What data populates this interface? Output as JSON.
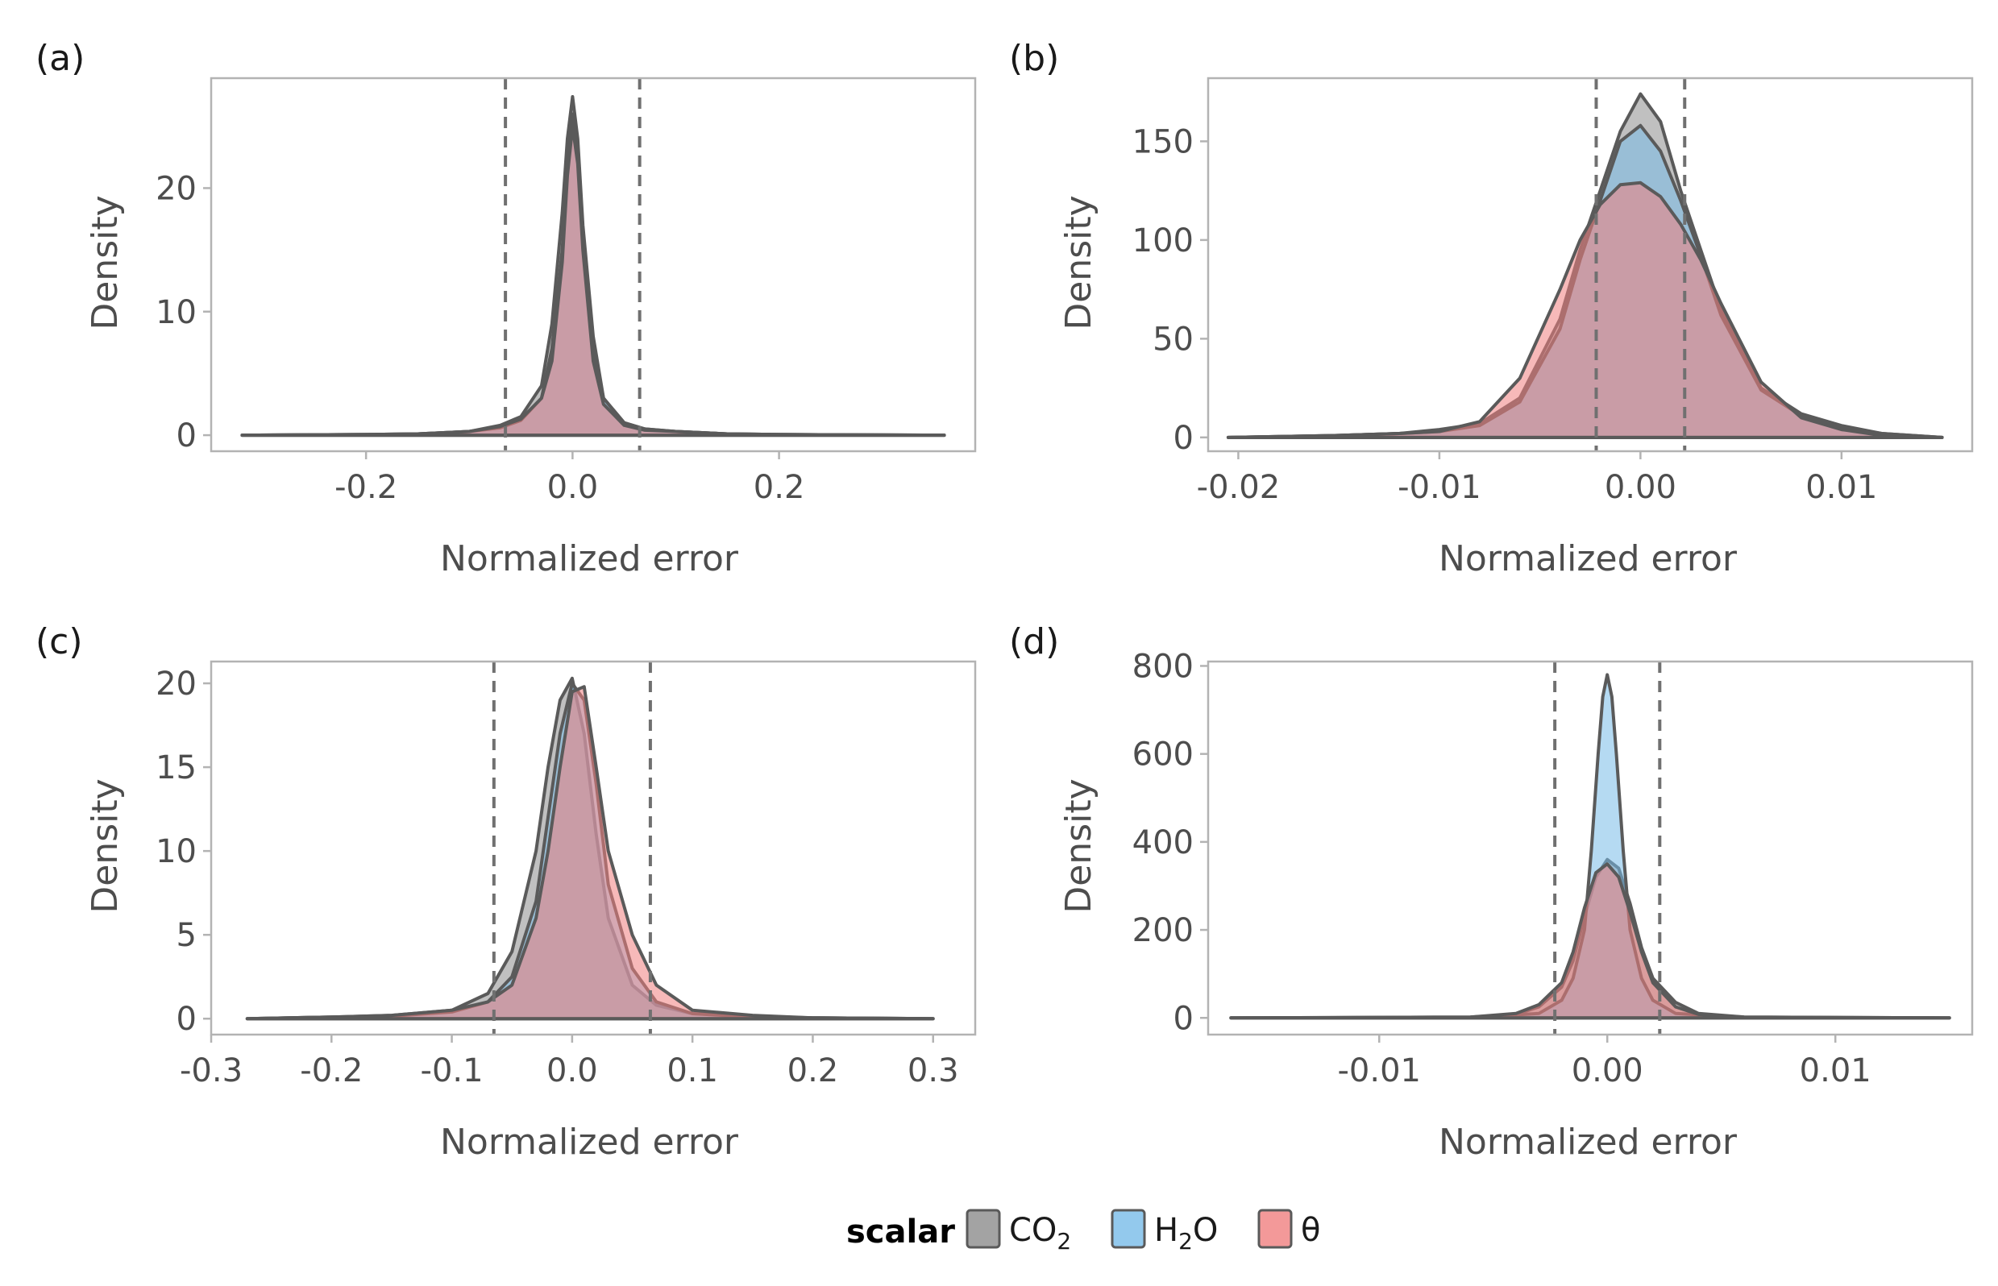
{
  "colors": {
    "CO2": "#8c8c8c",
    "H2O": "#78bbe8",
    "theta": "#f07f7f",
    "outline": "#5a5a5a",
    "panel_border": "#b3b3b3",
    "vline": "#707070"
  },
  "legend": {
    "title": "scalar",
    "items": [
      {
        "key": "CO2",
        "base": "CO",
        "sub": "2"
      },
      {
        "key": "H2O",
        "base": "H",
        "sub": "2",
        "tail": "O"
      },
      {
        "key": "theta",
        "base": "θ"
      }
    ]
  },
  "chart_data": [
    {
      "tag": "(a)",
      "type": "area",
      "xlabel": "Normalized error",
      "ylabel": "Density",
      "xlim": [
        -0.35,
        0.39
      ],
      "ylim": [
        -1.3,
        28.9
      ],
      "xticks": [
        -0.2,
        0.0,
        0.2
      ],
      "xtick_labels": [
        "-0.2",
        "0.0",
        "0.2"
      ],
      "yticks": [
        0,
        10,
        20
      ],
      "ytick_labels": [
        "0",
        "10",
        "20"
      ],
      "vlines": [
        -0.065,
        0.065
      ],
      "series": [
        {
          "key": "CO2",
          "x": [
            -0.32,
            -0.2,
            -0.15,
            -0.1,
            -0.07,
            -0.05,
            -0.03,
            -0.02,
            -0.01,
            -0.005,
            0,
            0.005,
            0.01,
            0.02,
            0.03,
            0.05,
            0.07,
            0.1,
            0.15,
            0.2,
            0.36
          ],
          "y": [
            0,
            0.05,
            0.1,
            0.3,
            0.8,
            1.5,
            4,
            9,
            18,
            24,
            27.4,
            24,
            17,
            8,
            3,
            1,
            0.5,
            0.3,
            0.1,
            0.05,
            0
          ]
        },
        {
          "key": "H2O",
          "x": [
            -0.32,
            -0.2,
            -0.15,
            -0.1,
            -0.07,
            -0.05,
            -0.03,
            -0.02,
            -0.01,
            -0.005,
            0,
            0.005,
            0.01,
            0.02,
            0.03,
            0.05,
            0.07,
            0.1,
            0.15,
            0.2,
            0.36
          ],
          "y": [
            0,
            0.05,
            0.1,
            0.3,
            0.6,
            1.2,
            3,
            7,
            15,
            22,
            26,
            23,
            16,
            7,
            3,
            1,
            0.5,
            0.3,
            0.1,
            0.05,
            0
          ]
        },
        {
          "key": "theta",
          "x": [
            -0.32,
            -0.2,
            -0.15,
            -0.1,
            -0.07,
            -0.05,
            -0.03,
            -0.02,
            -0.01,
            -0.005,
            0,
            0.005,
            0.01,
            0.02,
            0.03,
            0.05,
            0.07,
            0.1,
            0.15,
            0.2,
            0.36
          ],
          "y": [
            0,
            0.05,
            0.1,
            0.3,
            0.7,
            1.3,
            3,
            6,
            14,
            21,
            25,
            22,
            15,
            6,
            2.5,
            0.8,
            0.4,
            0.3,
            0.1,
            0.05,
            0
          ]
        }
      ]
    },
    {
      "tag": "(b)",
      "type": "area",
      "xlabel": "Normalized error",
      "ylabel": "Density",
      "xlim": [
        -0.0215,
        0.0165
      ],
      "ylim": [
        -7,
        182
      ],
      "xticks": [
        -0.02,
        -0.01,
        0.0,
        0.01
      ],
      "xtick_labels": [
        "-0.02",
        "-0.01",
        "0.00",
        "0.01"
      ],
      "yticks": [
        0,
        50,
        100,
        150
      ],
      "ytick_labels": [
        "0",
        "50",
        "100",
        "150"
      ],
      "vlines": [
        -0.0022,
        0.0022
      ],
      "series": [
        {
          "key": "CO2",
          "x": [
            -0.0205,
            -0.015,
            -0.012,
            -0.01,
            -0.008,
            -0.006,
            -0.004,
            -0.003,
            -0.002,
            -0.001,
            0,
            0.001,
            0.002,
            0.003,
            0.004,
            0.006,
            0.008,
            0.01,
            0.012,
            0.015
          ],
          "y": [
            0,
            1,
            2,
            4,
            7,
            20,
            60,
            95,
            125,
            155,
            174,
            160,
            125,
            95,
            65,
            25,
            12,
            6,
            2,
            0
          ]
        },
        {
          "key": "H2O",
          "x": [
            -0.0205,
            -0.015,
            -0.012,
            -0.01,
            -0.008,
            -0.006,
            -0.004,
            -0.003,
            -0.002,
            -0.001,
            0,
            0.001,
            0.002,
            0.003,
            0.004,
            0.006,
            0.008,
            0.01,
            0.012,
            0.015
          ],
          "y": [
            0,
            1,
            2,
            3,
            6,
            18,
            55,
            90,
            120,
            150,
            158,
            145,
            120,
            92,
            62,
            24,
            11,
            5,
            2,
            0
          ]
        },
        {
          "key": "theta",
          "x": [
            -0.0205,
            -0.015,
            -0.012,
            -0.01,
            -0.008,
            -0.006,
            -0.004,
            -0.003,
            -0.002,
            -0.001,
            0,
            0.001,
            0.002,
            0.003,
            0.004,
            0.006,
            0.008,
            0.01,
            0.012,
            0.015
          ],
          "y": [
            0,
            1,
            2,
            3,
            8,
            30,
            75,
            100,
            118,
            128,
            129,
            122,
            108,
            90,
            68,
            28,
            10,
            4,
            1,
            0
          ]
        }
      ]
    },
    {
      "tag": "(c)",
      "type": "area",
      "xlabel": "Normalized error",
      "ylabel": "Density",
      "xlim": [
        -0.3,
        0.335
      ],
      "ylim": [
        -0.95,
        21.3
      ],
      "xticks": [
        -0.3,
        -0.2,
        -0.1,
        0.0,
        0.1,
        0.2,
        0.3
      ],
      "xtick_labels": [
        "-0.3",
        "-0.2",
        "-0.1",
        "0.0",
        "0.1",
        "0.2",
        "0.3"
      ],
      "yticks": [
        0,
        5,
        10,
        15,
        20
      ],
      "ytick_labels": [
        "0",
        "5",
        "10",
        "15",
        "20"
      ],
      "vlines": [
        -0.065,
        0.065
      ],
      "series": [
        {
          "key": "CO2",
          "x": [
            -0.27,
            -0.2,
            -0.15,
            -0.1,
            -0.07,
            -0.05,
            -0.03,
            -0.02,
            -0.01,
            0,
            0.01,
            0.02,
            0.03,
            0.05,
            0.07,
            0.1,
            0.15,
            0.2,
            0.3
          ],
          "y": [
            0,
            0.1,
            0.2,
            0.5,
            1.5,
            4,
            10,
            15,
            19,
            20.3,
            17,
            11,
            6,
            2,
            0.8,
            0.3,
            0.15,
            0.05,
            0
          ]
        },
        {
          "key": "H2O",
          "x": [
            -0.27,
            -0.2,
            -0.15,
            -0.1,
            -0.07,
            -0.05,
            -0.03,
            -0.02,
            -0.01,
            0,
            0.01,
            0.02,
            0.03,
            0.05,
            0.07,
            0.1,
            0.15,
            0.2,
            0.3
          ],
          "y": [
            0,
            0.1,
            0.15,
            0.4,
            1,
            2.5,
            7,
            12,
            17,
            20,
            19,
            14,
            8,
            3,
            1,
            0.3,
            0.1,
            0.05,
            0
          ]
        },
        {
          "key": "theta",
          "x": [
            -0.27,
            -0.2,
            -0.15,
            -0.1,
            -0.07,
            -0.05,
            -0.03,
            -0.02,
            -0.01,
            0,
            0.01,
            0.02,
            0.03,
            0.05,
            0.07,
            0.1,
            0.15,
            0.2,
            0.3
          ],
          "y": [
            0,
            0.1,
            0.2,
            0.5,
            1,
            2,
            6,
            10,
            15,
            19.5,
            19.8,
            15,
            10,
            5,
            2,
            0.5,
            0.2,
            0.05,
            0
          ]
        }
      ]
    },
    {
      "tag": "(d)",
      "type": "area",
      "xlabel": "Normalized error",
      "ylabel": "Density",
      "xlim": [
        -0.0175,
        0.016
      ],
      "ylim": [
        -38,
        810
      ],
      "xticks": [
        -0.01,
        0.0,
        0.01
      ],
      "xtick_labels": [
        "-0.01",
        "0.00",
        "0.01"
      ],
      "yticks": [
        0,
        200,
        400,
        600,
        800
      ],
      "ytick_labels": [
        "0",
        "200",
        "400",
        "600",
        "800"
      ],
      "vlines": [
        -0.0023,
        0.0023
      ],
      "series": [
        {
          "key": "CO2",
          "x": [
            -0.0165,
            -0.006,
            -0.004,
            -0.003,
            -0.002,
            -0.0015,
            -0.001,
            -0.0005,
            0,
            0.0005,
            0.001,
            0.0015,
            0.002,
            0.003,
            0.004,
            0.006,
            0.015
          ],
          "y": [
            0,
            2,
            8,
            25,
            70,
            130,
            230,
            320,
            360,
            340,
            260,
            160,
            90,
            35,
            10,
            2,
            0
          ]
        },
        {
          "key": "H2O",
          "x": [
            -0.0165,
            -0.006,
            -0.003,
            -0.002,
            -0.0015,
            -0.001,
            -0.0007,
            -0.0004,
            -0.0002,
            0,
            0.0002,
            0.0004,
            0.0007,
            0.001,
            0.0015,
            0.002,
            0.003,
            0.006,
            0.015
          ],
          "y": [
            0,
            1,
            10,
            40,
            90,
            200,
            380,
            600,
            730,
            780,
            730,
            600,
            380,
            200,
            90,
            40,
            10,
            1,
            0
          ]
        },
        {
          "key": "theta",
          "x": [
            -0.0165,
            -0.006,
            -0.004,
            -0.003,
            -0.002,
            -0.0015,
            -0.001,
            -0.0005,
            0,
            0.0005,
            0.001,
            0.0015,
            0.002,
            0.003,
            0.004,
            0.006,
            0.015
          ],
          "y": [
            0,
            2,
            10,
            30,
            80,
            150,
            250,
            330,
            350,
            320,
            240,
            150,
            80,
            25,
            8,
            2,
            0
          ]
        }
      ]
    }
  ]
}
